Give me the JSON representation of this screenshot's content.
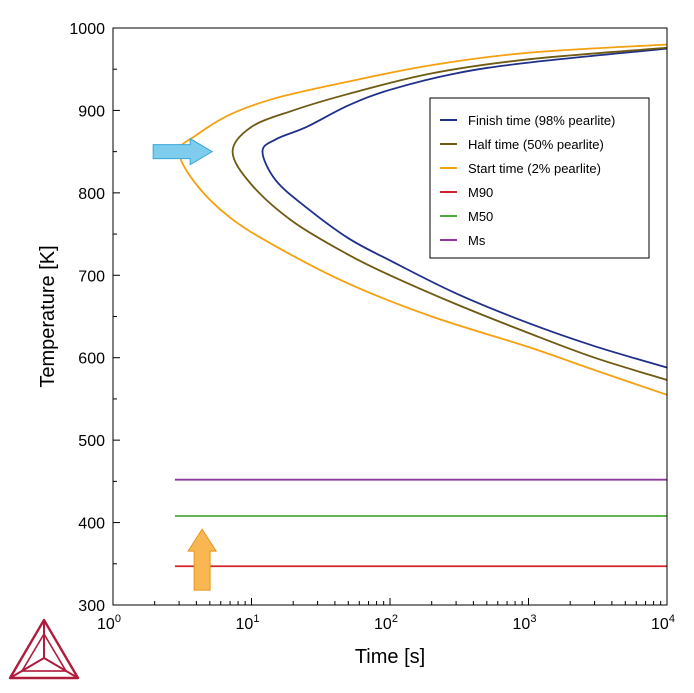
{
  "chart_data": {
    "type": "line",
    "xlabel": "Time [s]",
    "ylabel": "Temperature [K]",
    "xscale": "log",
    "xlim": [
      1,
      10000
    ],
    "ylim": [
      300,
      1000
    ],
    "x_ticks": [
      {
        "value": 1,
        "base": "10",
        "exp": "0"
      },
      {
        "value": 10,
        "base": "10",
        "exp": "1"
      },
      {
        "value": 100,
        "base": "10",
        "exp": "2"
      },
      {
        "value": 1000,
        "base": "10",
        "exp": "3"
      },
      {
        "value": 10000,
        "base": "10",
        "exp": "4"
      }
    ],
    "y_ticks": [
      "300",
      "400",
      "500",
      "600",
      "700",
      "800",
      "900",
      "1000"
    ],
    "legend_position": "top-right",
    "grid": false,
    "series": [
      {
        "name": "Finish time (98% pearlite)",
        "color": "#1f2f8a",
        "points": [
          [
            10000,
            975
          ],
          [
            1000,
            958
          ],
          [
            300,
            945
          ],
          [
            100,
            925
          ],
          [
            50,
            906
          ],
          [
            25,
            880
          ],
          [
            15,
            865
          ],
          [
            12,
            850
          ],
          [
            15,
            815
          ],
          [
            25,
            782
          ],
          [
            50,
            745
          ],
          [
            100,
            718
          ],
          [
            300,
            678
          ],
          [
            1000,
            642
          ],
          [
            3000,
            614
          ],
          [
            10000,
            588
          ]
        ]
      },
      {
        "name": "Half time (50% pearlite)",
        "color": "#6e5a10",
        "points": [
          [
            10000,
            976
          ],
          [
            1000,
            962
          ],
          [
            200,
            945
          ],
          [
            50,
            920
          ],
          [
            20,
            900
          ],
          [
            10,
            880
          ],
          [
            7.3,
            850
          ],
          [
            10,
            810
          ],
          [
            20,
            765
          ],
          [
            50,
            725
          ],
          [
            100,
            700
          ],
          [
            300,
            665
          ],
          [
            1000,
            630
          ],
          [
            3000,
            600
          ],
          [
            10000,
            573
          ]
        ]
      },
      {
        "name": "Start time (2% pearlite)",
        "color": "#f5a00f",
        "points": [
          [
            10000,
            980
          ],
          [
            1000,
            970
          ],
          [
            200,
            955
          ],
          [
            50,
            935
          ],
          [
            15,
            915
          ],
          [
            7,
            895
          ],
          [
            4,
            870
          ],
          [
            3,
            850
          ],
          [
            4,
            810
          ],
          [
            7,
            770
          ],
          [
            15,
            735
          ],
          [
            50,
            690
          ],
          [
            200,
            650
          ],
          [
            1000,
            613
          ],
          [
            3000,
            585
          ],
          [
            10000,
            555
          ]
        ]
      },
      {
        "name": "M90",
        "color": "#d0232b",
        "points": [
          [
            2.8,
            347
          ],
          [
            10000,
            347
          ]
        ]
      },
      {
        "name": "M50",
        "color": "#4caa3c",
        "points": [
          [
            2.8,
            408
          ],
          [
            10000,
            408
          ]
        ]
      },
      {
        "name": "Ms",
        "color": "#8e3a9c",
        "points": [
          [
            2.8,
            452
          ],
          [
            10000,
            452
          ]
        ]
      }
    ]
  },
  "annotations": {
    "blue_arrow": {
      "color": "#7ecdee",
      "stroke": "#3aa7d6",
      "x_from": 1.95,
      "x_to": 5.2,
      "y": 850
    },
    "orange_arrow": {
      "color": "#f8b752",
      "stroke": "#e8951a",
      "x": 4.4,
      "y_from": 318,
      "y_to": 392
    }
  },
  "logo": {
    "name": "thermo-calc-logo",
    "color": "#b01c3c"
  }
}
